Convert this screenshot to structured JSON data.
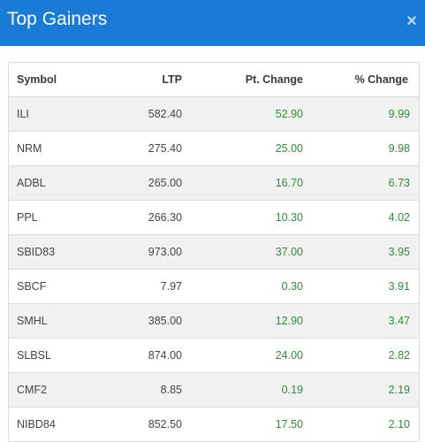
{
  "modal": {
    "title": "Top Gainers",
    "close_label": "×",
    "close_icon": "close-icon"
  },
  "colors": {
    "header_bg": "#1a7bd6",
    "gain": "#2e8b3a"
  },
  "table": {
    "columns": [
      "Symbol",
      "LTP",
      "Pt. Change",
      "% Change"
    ],
    "rows": [
      [
        "ILI",
        "582.40",
        "52.90",
        "9.99"
      ],
      [
        "NRM",
        "275.40",
        "25.00",
        "9.98"
      ],
      [
        "ADBL",
        "265.00",
        "16.70",
        "6.73"
      ],
      [
        "PPL",
        "266.30",
        "10.30",
        "4.02"
      ],
      [
        "SBID83",
        "973.00",
        "37.00",
        "3.95"
      ],
      [
        "SBCF",
        "7.97",
        "0.30",
        "3.91"
      ],
      [
        "SMHL",
        "385.00",
        "12.90",
        "3.47"
      ],
      [
        "SLBSL",
        "874.00",
        "24.00",
        "2.82"
      ],
      [
        "CMF2",
        "8.85",
        "0.19",
        "2.19"
      ],
      [
        "NIBD84",
        "852.50",
        "17.50",
        "2.10"
      ]
    ]
  }
}
